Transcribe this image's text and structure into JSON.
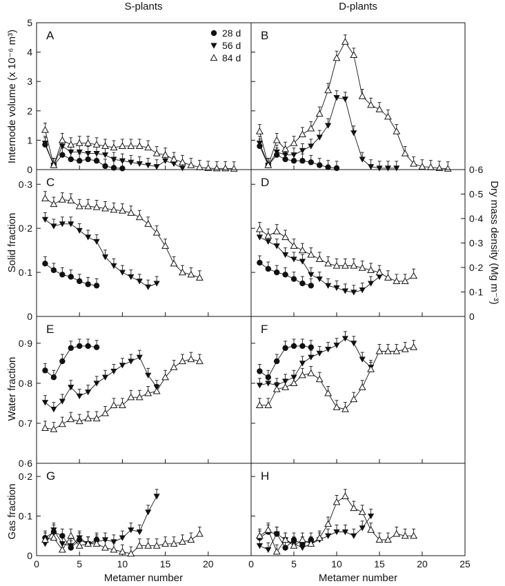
{
  "figure": {
    "column_titles": [
      "S-plants",
      "D-plants"
    ],
    "x_axis_label": "Metamer number",
    "x_ticks": [
      "0",
      "5",
      "10",
      "15",
      "20",
      "25"
    ],
    "legend": [
      {
        "label": "28 d",
        "marker": "circle-filled"
      },
      {
        "label": "56 d",
        "marker": "triangle-down-filled"
      },
      {
        "label": "84 d",
        "marker": "triangle-up-open"
      }
    ],
    "rows": [
      {
        "ylabel": "Internode volume (x 10⁻⁶ m³)",
        "yticks": [
          "0",
          "1",
          "2",
          "3",
          "4",
          "5"
        ]
      },
      {
        "ylabel": "Solid fraction",
        "yticks": [
          "0",
          "0·1",
          "0·2",
          "0·3"
        ]
      },
      {
        "ylabel": "Water fraction",
        "yticks": [
          "0·6",
          "0·7",
          "0·8",
          "0·9"
        ]
      },
      {
        "ylabel": "Gas fraction",
        "yticks": [
          "0",
          "0·1",
          "0·2"
        ]
      }
    ],
    "secondary_axis": {
      "label": "Dry mass density (Mg m⁻³)",
      "ticks": [
        "0",
        "0·1",
        "0·2",
        "0·3",
        "0·4",
        "0·5",
        "0·6"
      ]
    },
    "colors": {
      "ink": "#111111",
      "background": "#ffffff"
    }
  },
  "chart_data": [
    {
      "type": "line",
      "panel": "A",
      "title": "",
      "xlabel": "",
      "ylabel": "Internode volume (x 10⁻⁶ m³)",
      "xlim": [
        0,
        25
      ],
      "ylim": [
        0,
        5
      ],
      "grid": false,
      "legend_position": "top-right",
      "series": [
        {
          "name": "28 d",
          "x": [
            1,
            2,
            3,
            4,
            5,
            6,
            7,
            8,
            9,
            10
          ],
          "y": [
            0.85,
            0.15,
            0.5,
            0.35,
            0.3,
            0.35,
            0.3,
            0.12,
            0.06,
            0.04
          ]
        },
        {
          "name": "56 d",
          "x": [
            1,
            2,
            3,
            4,
            5,
            6,
            7,
            8,
            9,
            10,
            11,
            12,
            13,
            14,
            15,
            16,
            17
          ],
          "y": [
            0.9,
            0.15,
            0.8,
            0.6,
            0.6,
            0.55,
            0.55,
            0.5,
            0.35,
            0.3,
            0.25,
            0.2,
            0.15,
            0.1,
            0.3,
            0.2,
            0.05
          ]
        },
        {
          "name": "84 d",
          "x": [
            1,
            2,
            3,
            4,
            5,
            6,
            7,
            8,
            9,
            10,
            11,
            12,
            13,
            14,
            15,
            16,
            17,
            18,
            19,
            20,
            21,
            22,
            23
          ],
          "y": [
            1.35,
            0.15,
            1.0,
            0.85,
            0.9,
            0.9,
            0.85,
            0.8,
            0.75,
            0.8,
            0.8,
            0.8,
            0.75,
            0.55,
            0.5,
            0.35,
            0.25,
            0.15,
            0.08,
            0.05,
            0.04,
            0.04,
            0.03
          ]
        }
      ]
    },
    {
      "type": "line",
      "panel": "B",
      "title": "",
      "xlabel": "",
      "ylabel": "",
      "xlim": [
        0,
        25
      ],
      "ylim": [
        0,
        5
      ],
      "grid": false,
      "series": [
        {
          "name": "28 d",
          "x": [
            1,
            2,
            3,
            4,
            5,
            6,
            7,
            8,
            9,
            10
          ],
          "y": [
            0.8,
            0.15,
            0.5,
            0.35,
            0.3,
            0.3,
            0.25,
            0.15,
            0.08,
            0.05
          ]
        },
        {
          "name": "56 d",
          "x": [
            1,
            2,
            3,
            4,
            5,
            6,
            7,
            8,
            9,
            10,
            11,
            12,
            13,
            14,
            15,
            16,
            17
          ],
          "y": [
            0.9,
            0.15,
            0.6,
            0.5,
            0.5,
            0.65,
            0.8,
            1.1,
            1.5,
            2.45,
            2.4,
            1.25,
            0.35,
            0.1,
            0.05,
            0.05,
            0.05
          ]
        },
        {
          "name": "84 d",
          "x": [
            1,
            2,
            3,
            4,
            5,
            6,
            7,
            8,
            9,
            10,
            11,
            12,
            13,
            14,
            15,
            16,
            17,
            18,
            19,
            20,
            21,
            22,
            23
          ],
          "y": [
            1.3,
            0.15,
            1.0,
            0.7,
            0.9,
            1.2,
            1.4,
            1.9,
            2.7,
            3.8,
            4.35,
            3.9,
            2.5,
            2.2,
            2.05,
            1.8,
            1.3,
            0.55,
            0.2,
            0.1,
            0.08,
            0.05,
            0.03
          ]
        }
      ]
    },
    {
      "type": "line",
      "panel": "C",
      "title": "",
      "xlabel": "",
      "ylabel": "Solid fraction",
      "xlim": [
        0,
        25
      ],
      "ylim": [
        0,
        0.3333
      ],
      "grid": false,
      "series": [
        {
          "name": "28 d",
          "x": [
            1,
            2,
            3,
            4,
            5,
            6,
            7
          ],
          "y": [
            0.12,
            0.105,
            0.095,
            0.09,
            0.08,
            0.073,
            0.07
          ]
        },
        {
          "name": "56 d",
          "x": [
            1,
            2,
            3,
            4,
            5,
            6,
            7,
            8,
            9,
            10,
            11,
            12,
            13,
            14
          ],
          "y": [
            0.22,
            0.205,
            0.21,
            0.21,
            0.195,
            0.18,
            0.17,
            0.135,
            0.115,
            0.1,
            0.09,
            0.08,
            0.067,
            0.075
          ]
        },
        {
          "name": "84 d",
          "x": [
            1,
            2,
            3,
            4,
            5,
            6,
            7,
            8,
            9,
            10,
            11,
            12,
            13,
            14,
            15,
            16,
            17,
            18,
            19
          ],
          "y": [
            0.268,
            0.255,
            0.265,
            0.263,
            0.25,
            0.25,
            0.248,
            0.245,
            0.242,
            0.24,
            0.235,
            0.225,
            0.21,
            0.19,
            0.16,
            0.12,
            0.1,
            0.095,
            0.088
          ]
        }
      ]
    },
    {
      "type": "line",
      "panel": "D",
      "title": "",
      "xlabel": "",
      "ylabel": "Dry mass density (Mg m⁻³)",
      "xlim": [
        0,
        25
      ],
      "ylim": [
        0,
        0.3333
      ],
      "grid": false,
      "series": [
        {
          "name": "28 d",
          "x": [
            1,
            2,
            3,
            4,
            5,
            6,
            7
          ],
          "y": [
            0.122,
            0.108,
            0.1,
            0.095,
            0.085,
            0.075,
            0.07
          ]
        },
        {
          "name": "56 d",
          "x": [
            1,
            2,
            3,
            4,
            5,
            6,
            7,
            8,
            9,
            10,
            11,
            12,
            13,
            14,
            15
          ],
          "y": [
            0.18,
            0.17,
            0.16,
            0.14,
            0.13,
            0.125,
            0.095,
            0.085,
            0.07,
            0.065,
            0.058,
            0.055,
            0.06,
            0.075,
            0.09
          ]
        },
        {
          "name": "84 d",
          "x": [
            1,
            2,
            3,
            4,
            5,
            6,
            7,
            8,
            9,
            10,
            11,
            12,
            13,
            14,
            15,
            16,
            17,
            18,
            19
          ],
          "y": [
            0.198,
            0.183,
            0.193,
            0.18,
            0.16,
            0.15,
            0.14,
            0.13,
            0.12,
            0.115,
            0.115,
            0.115,
            0.11,
            0.105,
            0.1,
            0.088,
            0.08,
            0.08,
            0.092
          ]
        }
      ]
    },
    {
      "type": "line",
      "panel": "E",
      "title": "",
      "xlabel": "",
      "ylabel": "Water fraction",
      "xlim": [
        0,
        25
      ],
      "ylim": [
        0.6,
        0.967
      ],
      "grid": false,
      "series": [
        {
          "name": "28 d",
          "x": [
            1,
            2,
            3,
            4,
            5,
            6,
            7
          ],
          "y": [
            0.832,
            0.815,
            0.855,
            0.888,
            0.893,
            0.893,
            0.89
          ]
        },
        {
          "name": "56 d",
          "x": [
            1,
            2,
            3,
            4,
            5,
            6,
            7,
            8,
            9,
            10,
            11,
            12,
            13,
            14
          ],
          "y": [
            0.752,
            0.735,
            0.755,
            0.79,
            0.768,
            0.778,
            0.8,
            0.815,
            0.83,
            0.845,
            0.855,
            0.865,
            0.82,
            0.79
          ]
        },
        {
          "name": "84 d",
          "x": [
            1,
            2,
            3,
            4,
            5,
            6,
            7,
            8,
            9,
            10,
            11,
            12,
            13,
            14,
            15,
            16,
            17,
            18,
            19
          ],
          "y": [
            0.688,
            0.685,
            0.698,
            0.71,
            0.705,
            0.712,
            0.712,
            0.725,
            0.745,
            0.745,
            0.765,
            0.765,
            0.775,
            0.78,
            0.815,
            0.84,
            0.855,
            0.86,
            0.855
          ]
        }
      ]
    },
    {
      "type": "line",
      "panel": "F",
      "title": "",
      "xlabel": "",
      "ylabel": "",
      "xlim": [
        0,
        25
      ],
      "ylim": [
        0.6,
        0.967
      ],
      "grid": false,
      "series": [
        {
          "name": "28 d",
          "x": [
            1,
            2,
            3,
            4,
            5,
            6,
            7
          ],
          "y": [
            0.83,
            0.815,
            0.855,
            0.888,
            0.893,
            0.893,
            0.89
          ]
        },
        {
          "name": "56 d",
          "x": [
            1,
            2,
            3,
            4,
            5,
            6,
            7,
            8,
            9,
            10,
            11,
            12,
            13,
            14
          ],
          "y": [
            0.795,
            0.8,
            0.795,
            0.805,
            0.815,
            0.85,
            0.865,
            0.875,
            0.885,
            0.895,
            0.912,
            0.9,
            0.86,
            0.84
          ]
        },
        {
          "name": "84 d",
          "x": [
            1,
            2,
            3,
            4,
            5,
            6,
            7,
            8,
            9,
            10,
            11,
            12,
            13,
            14,
            15,
            16,
            17,
            18,
            19
          ],
          "y": [
            0.745,
            0.745,
            0.785,
            0.79,
            0.8,
            0.82,
            0.825,
            0.81,
            0.775,
            0.74,
            0.735,
            0.76,
            0.79,
            0.835,
            0.88,
            0.88,
            0.88,
            0.885,
            0.89
          ]
        }
      ]
    },
    {
      "type": "line",
      "panel": "G",
      "title": "",
      "xlabel": "Metamer number",
      "ylabel": "Gas fraction",
      "xlim": [
        0,
        25
      ],
      "ylim": [
        0,
        0.2333
      ],
      "grid": false,
      "series": [
        {
          "name": "28 d",
          "x": [
            1,
            2,
            3,
            4,
            5,
            6,
            7
          ],
          "y": [
            0.045,
            0.06,
            0.05,
            0.02,
            0.04,
            0.03,
            0.04
          ]
        },
        {
          "name": "56 d",
          "x": [
            1,
            2,
            3,
            4,
            5,
            6,
            7,
            8,
            9,
            10,
            11,
            12,
            13,
            14
          ],
          "y": [
            0.03,
            0.065,
            0.03,
            0.025,
            0.045,
            0.03,
            0.035,
            0.04,
            0.035,
            0.045,
            0.065,
            0.06,
            0.11,
            0.15
          ]
        },
        {
          "name": "84 d",
          "x": [
            1,
            2,
            3,
            4,
            5,
            6,
            7,
            8,
            9,
            10,
            11,
            12,
            13,
            14,
            15,
            16,
            17,
            18,
            19
          ],
          "y": [
            0.04,
            0.045,
            0.015,
            0.05,
            0.025,
            0.03,
            0.03,
            0.02,
            0.015,
            0.01,
            0.005,
            0.025,
            0.025,
            0.025,
            0.03,
            0.03,
            0.035,
            0.04,
            0.055
          ]
        }
      ]
    },
    {
      "type": "line",
      "panel": "H",
      "title": "",
      "xlabel": "Metamer number",
      "ylabel": "",
      "xlim": [
        0,
        25
      ],
      "ylim": [
        0,
        0.2333
      ],
      "grid": false,
      "series": [
        {
          "name": "28 d",
          "x": [
            1,
            2,
            3,
            4,
            5,
            6,
            7
          ],
          "y": [
            0.045,
            0.06,
            0.055,
            0.02,
            0.04,
            0.03,
            0.04
          ]
        },
        {
          "name": "56 d",
          "x": [
            1,
            2,
            3,
            4,
            5,
            6,
            7,
            8,
            9,
            10,
            11,
            12,
            13,
            14
          ],
          "y": [
            0.025,
            0.015,
            0.055,
            0.04,
            0.03,
            0.02,
            0.03,
            0.04,
            0.05,
            0.06,
            0.06,
            0.05,
            0.07,
            0.1
          ]
        },
        {
          "name": "84 d",
          "x": [
            1,
            2,
            3,
            4,
            5,
            6,
            7,
            8,
            9,
            10,
            11,
            12,
            13,
            14,
            15,
            16,
            17,
            18,
            19
          ],
          "y": [
            0.05,
            0.065,
            0.01,
            0.04,
            0.025,
            0.04,
            0.03,
            0.045,
            0.08,
            0.135,
            0.15,
            0.12,
            0.11,
            0.065,
            0.04,
            0.04,
            0.055,
            0.05,
            0.05
          ]
        }
      ]
    }
  ]
}
